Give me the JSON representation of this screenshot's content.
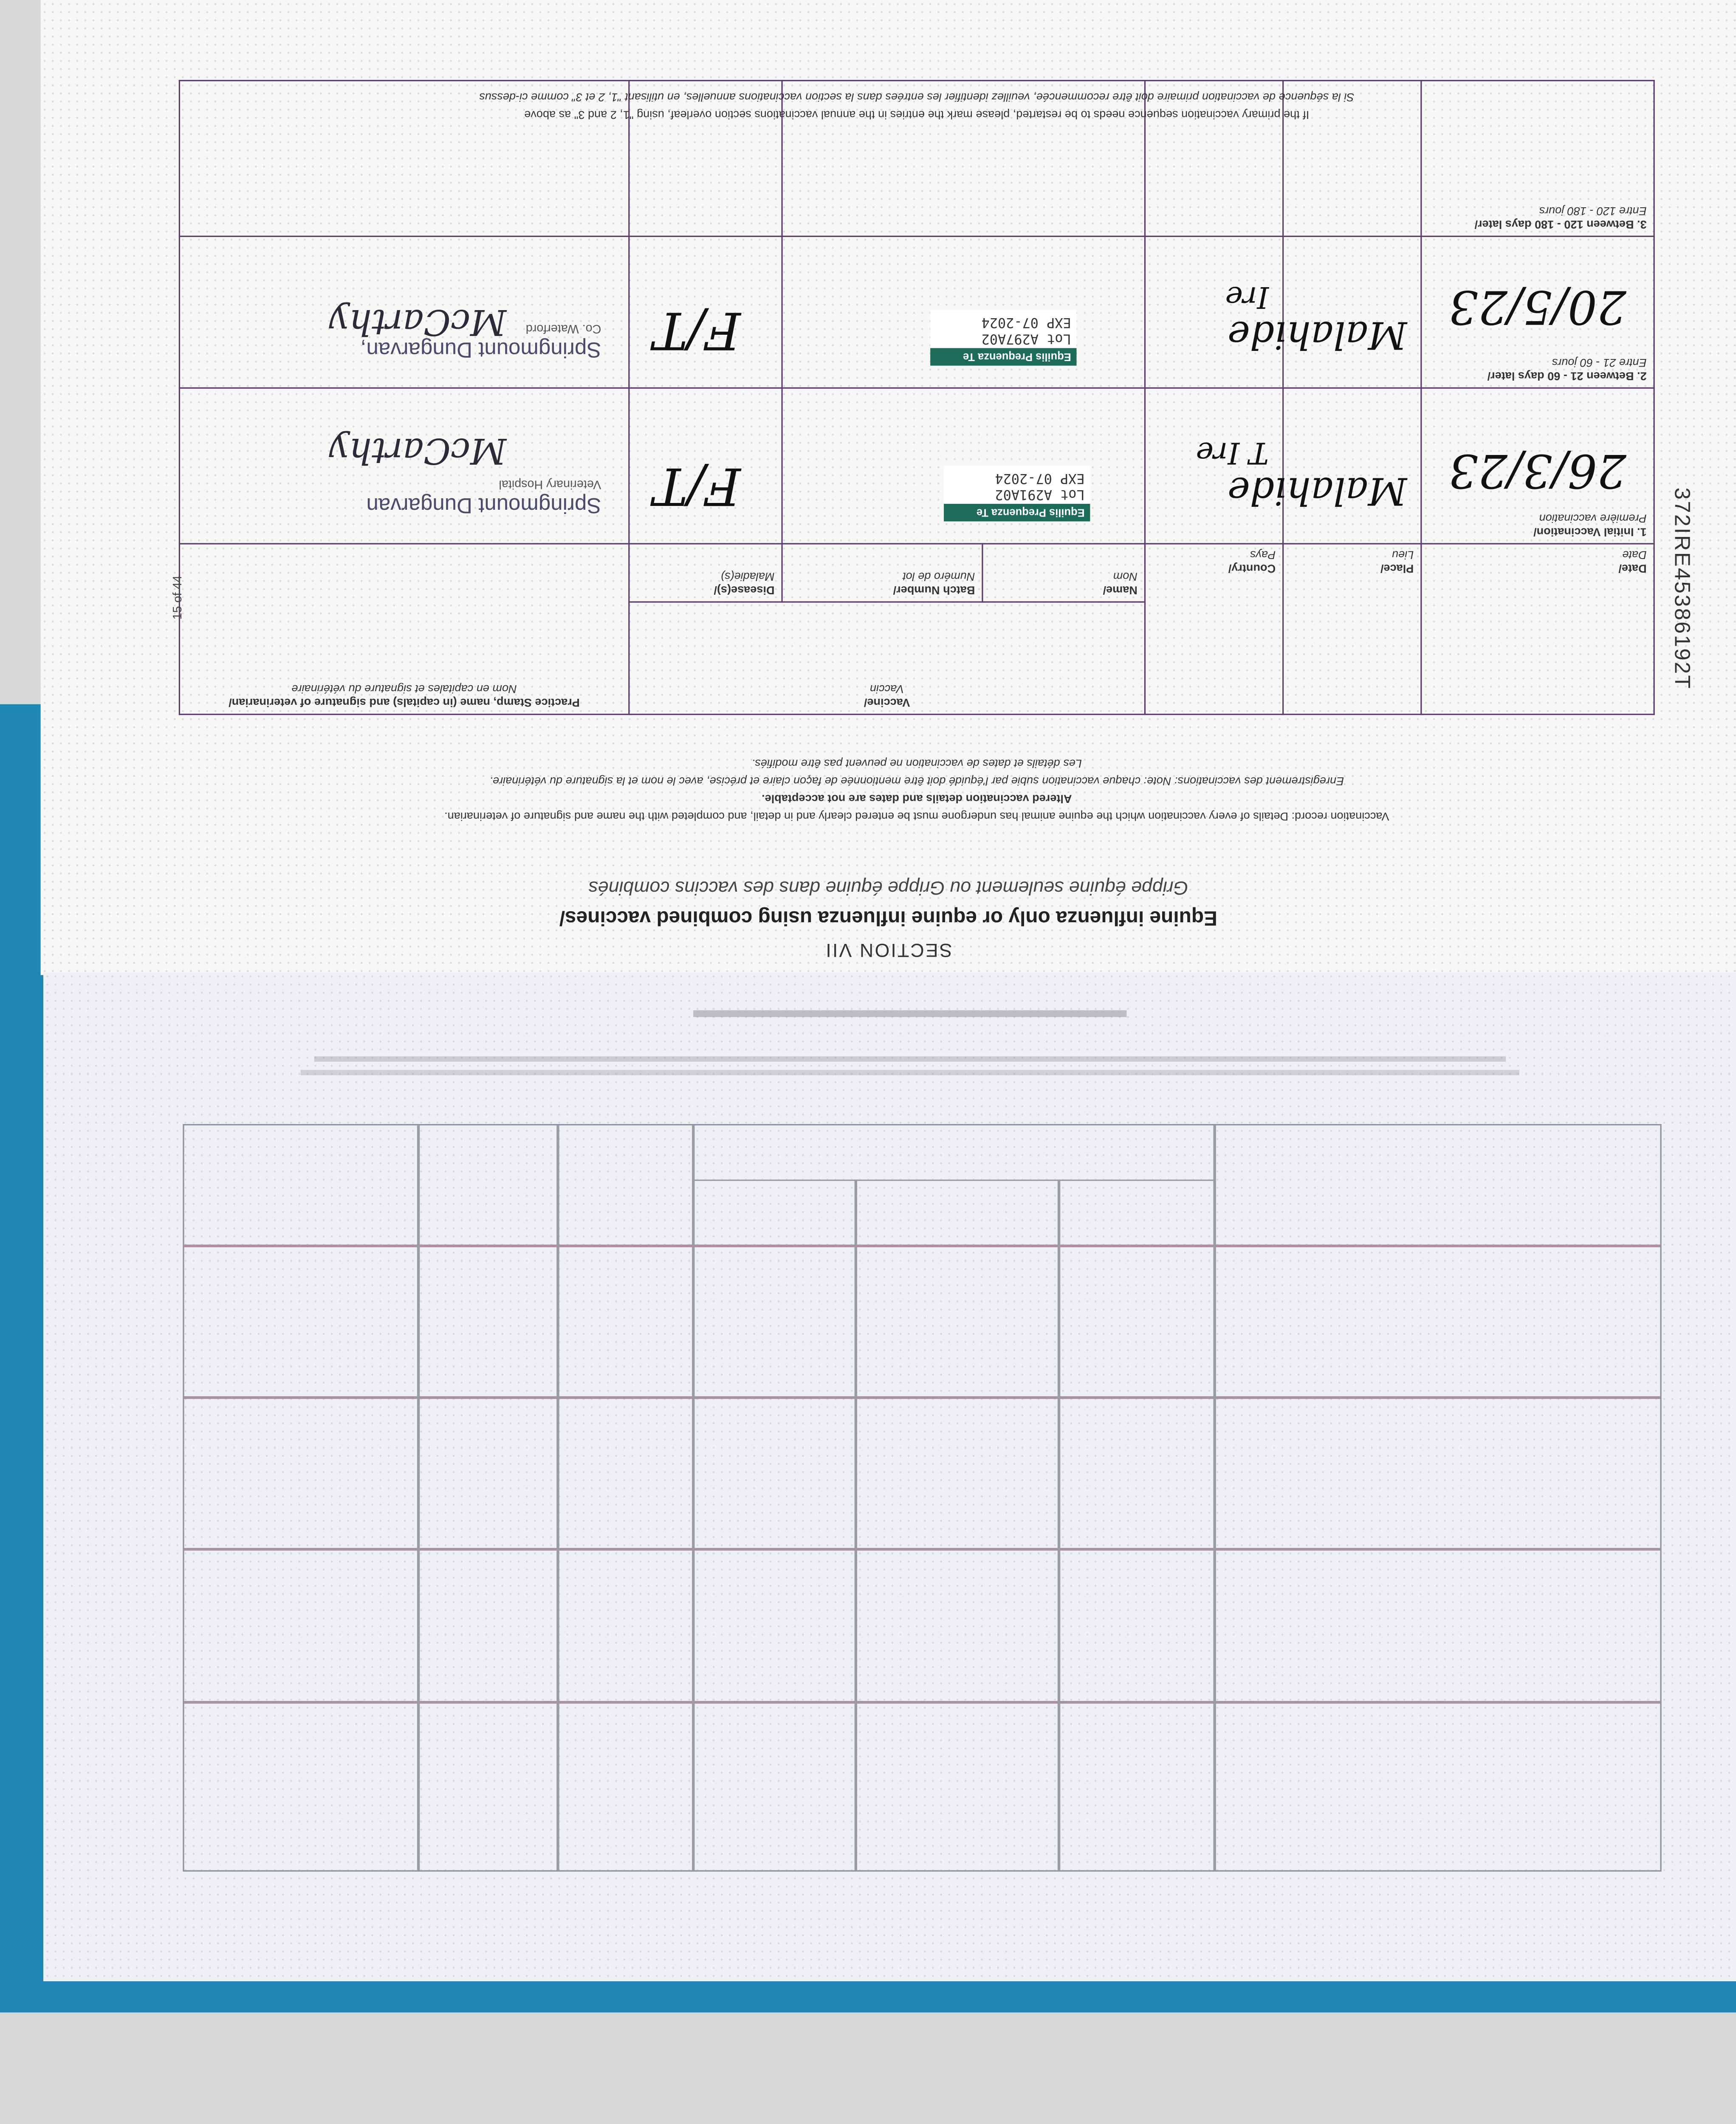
{
  "document": {
    "section": "SECTION VII",
    "title": "Equine influenza only or equine influenza using combined vaccines/",
    "subtitle": "Grippe équine seulement ou Grippe équine dans des vaccins combinés",
    "instructions": "Vaccination record: Details of every vaccination which the equine animal has undergone must be entered clearly and in detail, and completed with the name and signature of veterinarian.",
    "instructions_bold": "Altered vaccination details and dates are not acceptable.",
    "instructions_fr": "Enregistrement des vaccinations: Note: chaque vaccination subie par l'équidé doit être mentionnée de façon claire et précise, avec le nom et la signature du vétérinaire.",
    "instructions_fr_2": "Les détails et dates de vaccination ne peuvent pas être modifiés.",
    "footnote": "If the primary vaccination sequence needs to be restarted, please mark the entries in the annual vaccinations section overleaf, using \"1, 2 and 3\" as above",
    "footnote_fr": "Si la séquence de vaccination primaire doit être recommencée, veuillez identifier les entrées dans la section vaccinations annuelles, en utilisant \"1, 2 et 3\" comme ci-dessus",
    "page_number": "15 of 44",
    "serial": "372IRE45386192T"
  },
  "table": {
    "headers": {
      "date": "Date/",
      "date_fr": "Date",
      "place": "Place/",
      "place_fr": "Lieu",
      "country": "Country/",
      "country_fr": "Pays",
      "vaccine": "Vaccine/",
      "vaccine_fr": "Vaccin",
      "name": "Name/",
      "name_fr": "Nom",
      "batch": "Batch Number/",
      "batch_fr": "Numéro de lot",
      "disease": "Disease(s)/",
      "disease_fr": "Maladie(s)",
      "stamp": "Practice Stamp, name (in capitals) and signature of veterinarian/",
      "stamp_fr": "Nom en capitales et signature du vétérinaire"
    },
    "rows": [
      {
        "label": "1. Initial Vaccination/",
        "label_fr": "Première vaccination",
        "date": "26/3/23",
        "place": "Malahide",
        "country": "T Ire",
        "vaccine_brand": "Equilis Prequenza Te",
        "lot": "Lot A291A02",
        "exp": "EXP 07-2024",
        "disease": "F/T",
        "stamp_line": "Springmount Dungarvan",
        "stamp_sub": "Veterinary Hospital",
        "signature": "McCarthy"
      },
      {
        "label": "2. Between 21 - 60 days later/",
        "label_fr": "Entre 21 - 60 jours",
        "date": "20/5/23",
        "place": "Malahide",
        "country": "Ire",
        "vaccine_brand": "Equilis Prequenza Te",
        "lot": "Lot A297A02",
        "exp": "EXP 07-2024",
        "disease": "F/T",
        "stamp_line": "Springmount Dungarvan,",
        "stamp_sub": "Co. Waterford",
        "signature": "McCarthy"
      },
      {
        "label": "3. Between 120 - 180 days later/",
        "label_fr": "Entre 120 - 180 jours"
      }
    ]
  },
  "colors": {
    "binding": "#1f86b5",
    "table_rule": "#5a3a6a",
    "sticker": "#1d6b58"
  }
}
